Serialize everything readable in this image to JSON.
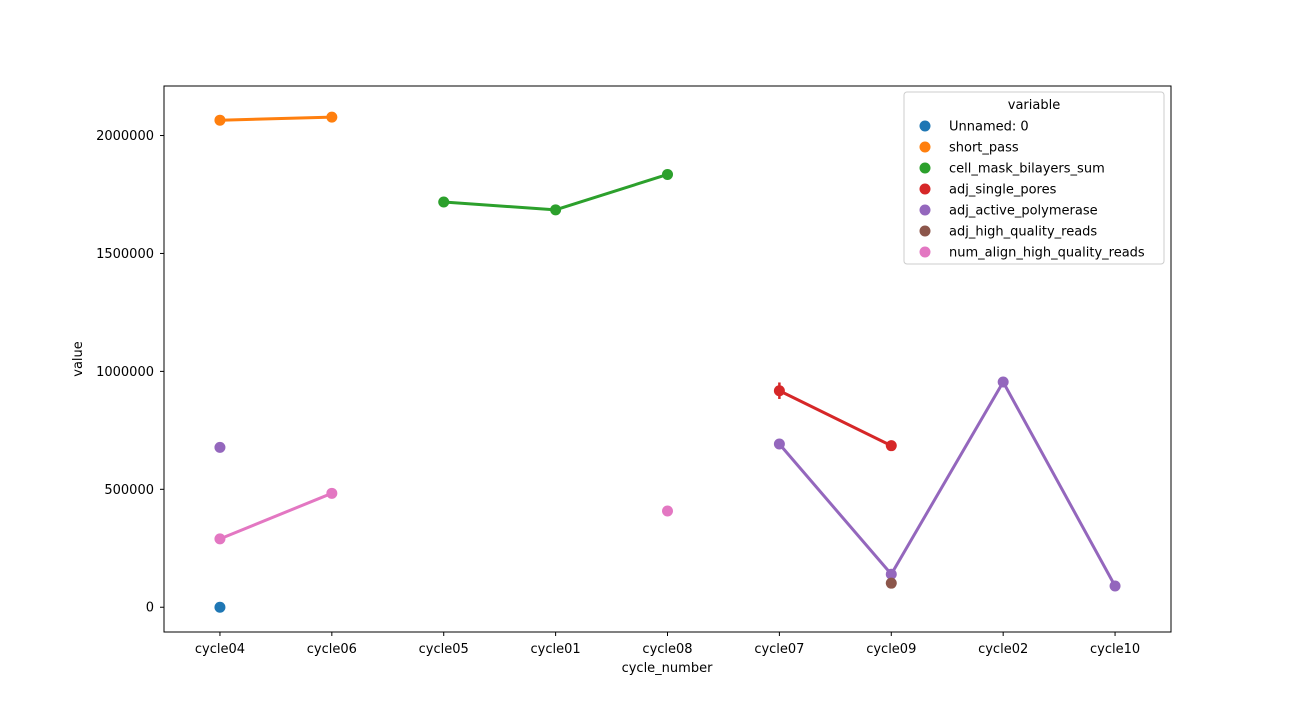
{
  "chart_data": {
    "type": "line",
    "title": "",
    "xlabel": "cycle_number",
    "ylabel": "value",
    "categories": [
      "cycle04",
      "cycle06",
      "cycle05",
      "cycle01",
      "cycle08",
      "cycle07",
      "cycle09",
      "cycle02",
      "cycle10"
    ],
    "ylim": [
      -105000,
      2210000
    ],
    "yticks": [
      0,
      500000,
      1000000,
      1500000,
      2000000
    ],
    "ytick_labels": [
      "0",
      "500000",
      "1000000",
      "1500000",
      "2000000"
    ],
    "legend": {
      "title": "variable",
      "placement": "top-right"
    },
    "series": [
      {
        "name": "Unnamed: 0",
        "color": "#1f77b4",
        "values": [
          0,
          null,
          null,
          null,
          null,
          null,
          null,
          null,
          null
        ]
      },
      {
        "name": "short_pass",
        "color": "#ff7f0e",
        "values": [
          2065000,
          2078000,
          null,
          null,
          null,
          null,
          null,
          null,
          null
        ]
      },
      {
        "name": "cell_mask_bilayers_sum",
        "color": "#2ca02c",
        "values": [
          null,
          null,
          1718000,
          1685000,
          1835000,
          null,
          null,
          null,
          null
        ]
      },
      {
        "name": "adj_single_pores",
        "color": "#d62728",
        "values": [
          null,
          null,
          null,
          null,
          null,
          918000,
          685000,
          null,
          null
        ],
        "error": [
          null,
          null,
          null,
          null,
          null,
          35000,
          null,
          null,
          null
        ]
      },
      {
        "name": "adj_active_polymerase",
        "color": "#9467bd",
        "values": [
          678000,
          null,
          null,
          null,
          null,
          692000,
          140000,
          955000,
          90000
        ]
      },
      {
        "name": "adj_high_quality_reads",
        "color": "#8c564b",
        "values": [
          null,
          null,
          null,
          null,
          null,
          null,
          102000,
          null,
          null
        ]
      },
      {
        "name": "num_align_high_quality_reads",
        "color": "#e377c2",
        "values": [
          290000,
          483000,
          null,
          null,
          408000,
          null,
          null,
          null,
          null
        ]
      }
    ]
  }
}
